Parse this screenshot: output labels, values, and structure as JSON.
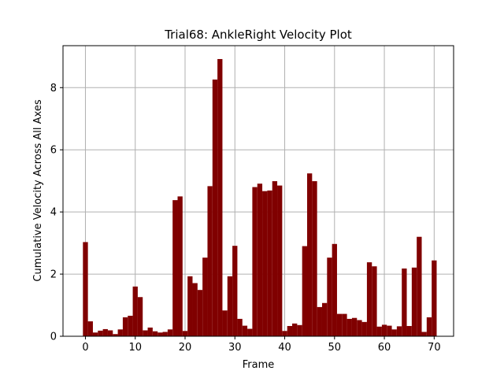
{
  "chart_data": {
    "type": "bar",
    "title": "Trial68: AnkleRight Velocity Plot",
    "xlabel": "Frame",
    "ylabel": "Cumulative Velocity Across All Axes",
    "xlim": [
      -4.5,
      73.9
    ],
    "ylim": [
      0,
      9.35
    ],
    "xticks": [
      0,
      10,
      20,
      30,
      40,
      50,
      60,
      70
    ],
    "yticks": [
      0,
      2,
      4,
      6,
      8
    ],
    "grid": true,
    "bar_color": "#800000",
    "x": [
      0,
      1,
      2,
      3,
      4,
      5,
      6,
      7,
      8,
      9,
      10,
      11,
      12,
      13,
      14,
      15,
      16,
      17,
      18,
      19,
      20,
      21,
      22,
      23,
      24,
      25,
      26,
      27,
      28,
      29,
      30,
      31,
      32,
      33,
      34,
      35,
      36,
      37,
      38,
      39,
      40,
      41,
      42,
      43,
      44,
      45,
      46,
      47,
      48,
      49,
      50,
      51,
      52,
      53,
      54,
      55,
      56,
      57,
      58,
      59,
      60,
      61,
      62,
      63,
      64,
      65,
      66,
      67,
      68,
      69,
      70
    ],
    "values": [
      3.03,
      0.48,
      0.12,
      0.18,
      0.23,
      0.19,
      0.07,
      0.22,
      0.61,
      0.66,
      1.6,
      1.26,
      0.19,
      0.28,
      0.16,
      0.12,
      0.14,
      0.22,
      4.38,
      4.5,
      0.17,
      1.93,
      1.71,
      1.49,
      2.53,
      4.83,
      8.26,
      8.92,
      0.83,
      1.93,
      2.91,
      0.56,
      0.34,
      0.24,
      4.8,
      4.91,
      4.67,
      4.69,
      4.99,
      4.85,
      0.17,
      0.33,
      0.41,
      0.36,
      2.9,
      5.24,
      4.99,
      0.94,
      1.07,
      2.53,
      2.97,
      0.72,
      0.72,
      0.56,
      0.59,
      0.52,
      0.46,
      2.38,
      2.25,
      0.31,
      0.37,
      0.34,
      0.22,
      0.32,
      2.18,
      0.33,
      2.21,
      3.2,
      0.14,
      0.61,
      2.44
    ]
  }
}
